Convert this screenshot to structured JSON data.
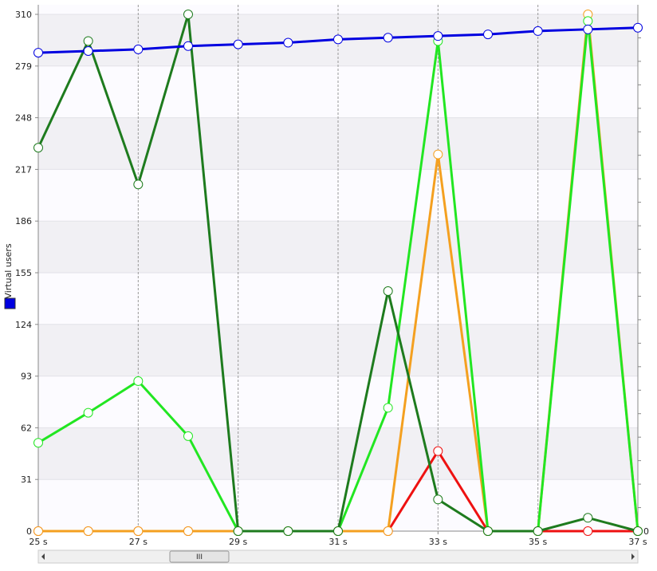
{
  "chart_data": {
    "type": "line",
    "y_label": "Virtual users",
    "x": [
      25,
      26,
      27,
      28,
      29,
      30,
      31,
      32,
      33,
      34,
      35,
      36,
      37
    ],
    "xlim": [
      25,
      37
    ],
    "xticks": [
      {
        "value": 25,
        "label": "25 s"
      },
      {
        "value": 27,
        "label": "27 s"
      },
      {
        "value": 29,
        "label": "29 s"
      },
      {
        "value": 31,
        "label": "31 s"
      },
      {
        "value": 33,
        "label": "33 s"
      },
      {
        "value": 35,
        "label": "35 s"
      },
      {
        "value": 37,
        "label": "37 s"
      }
    ],
    "ylim": [
      0,
      310
    ],
    "yticks": [
      0,
      31,
      62,
      93,
      124,
      155,
      186,
      217,
      248,
      279,
      310
    ],
    "y2lim": [
      0,
      22
    ],
    "y2ticks": [
      0
    ],
    "grid": true,
    "series": [
      {
        "color": "#ee1111",
        "values": [
          0,
          0,
          0,
          0,
          0,
          0,
          0,
          0,
          48,
          0,
          0,
          0,
          0
        ]
      },
      {
        "color": "#f4a020",
        "values": [
          0,
          0,
          0,
          0,
          0,
          0,
          0,
          0,
          226,
          0,
          0,
          310,
          0
        ]
      },
      {
        "color": "#22e622",
        "values": [
          53,
          71,
          90,
          57,
          0,
          0,
          0,
          74,
          294,
          0,
          0,
          306,
          0
        ]
      },
      {
        "color": "#1e7b1e",
        "values": [
          230,
          294,
          208,
          310,
          0,
          0,
          0,
          144,
          19,
          0,
          0,
          8,
          0
        ]
      },
      {
        "color": "#0000e0",
        "values": [
          287,
          288,
          289,
          291,
          292,
          293,
          295,
          296,
          297,
          298,
          300,
          301,
          302
        ]
      }
    ]
  }
}
